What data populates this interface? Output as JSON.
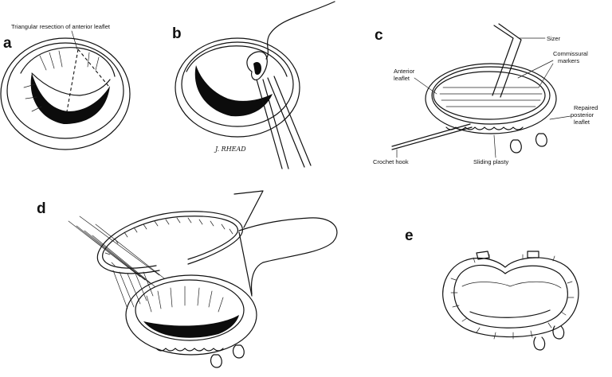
{
  "figure": {
    "panels": {
      "a": {
        "letter": "a",
        "annotation": "Triangular resection of anterior leaflet"
      },
      "b": {
        "letter": "b",
        "signature": "J. RHEAD"
      },
      "c": {
        "letter": "c",
        "labels": {
          "sizer": "Sizer",
          "commissural_1": "Commissural",
          "commissural_2": "markers",
          "anterior_1": "Anterior",
          "anterior_2": "leaflet",
          "repaired_1": "Repaired",
          "repaired_2": "posterior",
          "repaired_3": "leaflet",
          "crochet": "Crochet hook",
          "sliding": "Sliding plasty"
        }
      },
      "d": {
        "letter": "d"
      },
      "e": {
        "letter": "e"
      }
    }
  }
}
